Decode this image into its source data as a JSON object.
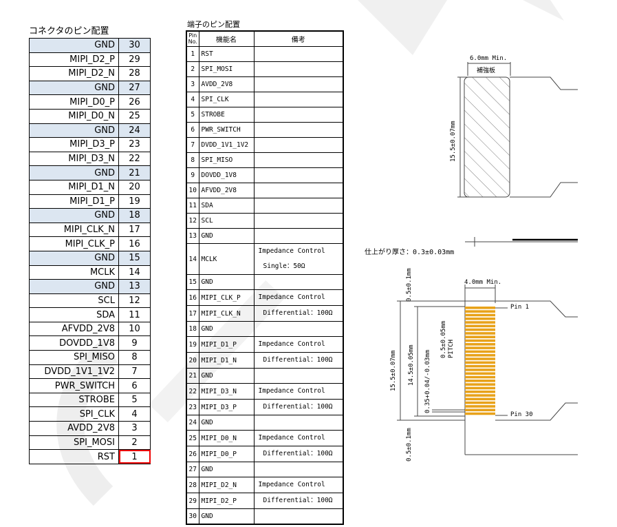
{
  "left": {
    "title": "コネクタのピン配置",
    "rows": [
      {
        "name": "GND",
        "no": "30"
      },
      {
        "name": "MIPI_D2_P",
        "no": "29"
      },
      {
        "name": "MIPI_D2_N",
        "no": "28"
      },
      {
        "name": "GND",
        "no": "27"
      },
      {
        "name": "MIPI_D0_P",
        "no": "26"
      },
      {
        "name": "MIPI_D0_N",
        "no": "25"
      },
      {
        "name": "GND",
        "no": "24"
      },
      {
        "name": "MIPI_D3_P",
        "no": "23"
      },
      {
        "name": "MIPI_D3_N",
        "no": "22"
      },
      {
        "name": "GND",
        "no": "21"
      },
      {
        "name": "MIPI_D1_N",
        "no": "20"
      },
      {
        "name": "MIPI_D1_P",
        "no": "19"
      },
      {
        "name": "GND",
        "no": "18"
      },
      {
        "name": "MIPI_CLK_N",
        "no": "17"
      },
      {
        "name": "MIPI_CLK_P",
        "no": "16"
      },
      {
        "name": "GND",
        "no": "15"
      },
      {
        "name": "MCLK",
        "no": "14"
      },
      {
        "name": "GND",
        "no": "13"
      },
      {
        "name": "SCL",
        "no": "12"
      },
      {
        "name": "SDA",
        "no": "11"
      },
      {
        "name": "AFVDD_2V8",
        "no": "10"
      },
      {
        "name": "DOVDD_1V8",
        "no": "9"
      },
      {
        "name": "SPI_MISO",
        "no": "8"
      },
      {
        "name": "DVDD_1V1_1V2",
        "no": "7"
      },
      {
        "name": "PWR_SWITCH",
        "no": "6"
      },
      {
        "name": "STROBE",
        "no": "5"
      },
      {
        "name": "SPI_CLK",
        "no": "4"
      },
      {
        "name": "AVDD_2V8",
        "no": "3"
      },
      {
        "name": "SPI_MOSI",
        "no": "2"
      },
      {
        "name": "RST",
        "no": "1"
      }
    ]
  },
  "mid": {
    "title": "端子のピン配置",
    "headers": {
      "pin_line1": "Pin",
      "pin_line2": "No.",
      "func": "機能名",
      "remarks": "備考"
    },
    "rows": [
      {
        "no": "1",
        "fn": "RST"
      },
      {
        "no": "2",
        "fn": "SPI_MOSI"
      },
      {
        "no": "3",
        "fn": "AVDD_2V8"
      },
      {
        "no": "4",
        "fn": "SPI_CLK"
      },
      {
        "no": "5",
        "fn": "STROBE"
      },
      {
        "no": "6",
        "fn": "PWR_SWITCH"
      },
      {
        "no": "7",
        "fn": "DVDD_1V1_1V2"
      },
      {
        "no": "8",
        "fn": "SPI_MISO"
      },
      {
        "no": "9",
        "fn": "DOVDD_1V8"
      },
      {
        "no": "10",
        "fn": "AFVDD_2V8"
      },
      {
        "no": "11",
        "fn": "SDA"
      },
      {
        "no": "12",
        "fn": "SCL"
      },
      {
        "no": "13",
        "fn": "GND"
      },
      {
        "no": "14",
        "fn": "MCLK",
        "r1": "Impedance Control",
        "r2": "Single：50Ω"
      },
      {
        "no": "15",
        "fn": "GND"
      },
      {
        "no": "16",
        "fn": "MIPI_CLK_P",
        "r1": "Impedance Control"
      },
      {
        "no": "17",
        "fn": "MIPI_CLK_N",
        "r2": "Differential：100Ω"
      },
      {
        "no": "18",
        "fn": "GND"
      },
      {
        "no": "19",
        "fn": "MIPI_D1_P",
        "r1": "Impedance Control"
      },
      {
        "no": "20",
        "fn": "MIPI_D1_N",
        "r2": "Differential：100Ω"
      },
      {
        "no": "21",
        "fn": "GND"
      },
      {
        "no": "22",
        "fn": "MIPI_D3_N",
        "r1": "Impedance Control"
      },
      {
        "no": "23",
        "fn": "MIPI_D3_P",
        "r2": "Differential：100Ω"
      },
      {
        "no": "24",
        "fn": "GND"
      },
      {
        "no": "25",
        "fn": "MIPI_D0_N",
        "r1": "Impedance Control"
      },
      {
        "no": "26",
        "fn": "MIPI_D0_P",
        "r2": "Differential：100Ω"
      },
      {
        "no": "27",
        "fn": "GND"
      },
      {
        "no": "28",
        "fn": "MIPI_D2_N",
        "r1": "Impedance Control"
      },
      {
        "no": "29",
        "fn": "MIPI_D2_P",
        "r2": "Differential：100Ω"
      },
      {
        "no": "30",
        "fn": "GND"
      }
    ]
  },
  "drawing": {
    "stiffener_width": "6.0mm Min.",
    "stiffener_label": "補強板",
    "stiffener_height": "15.5±0.07mm",
    "thickness": "仕上がり厚さ：0.3±0.03mm",
    "contact_width": "4.0mm Min.",
    "edge_top": "0.5±0.1mm",
    "edge_bottom": "0.5±0.1mm",
    "total_height": "15.5±0.07mm",
    "pin_span": "14.5±0.05mm",
    "pitch": "0.5±0.05mm PITCH",
    "pad_width": "0.35+0.04/-0.03mm",
    "pin1": "Pin 1",
    "pin30": "Pin 30"
  },
  "colors": {
    "gnd_fill": "#dce6f1",
    "highlight": "#e00000",
    "contact": "#e8a21a"
  }
}
